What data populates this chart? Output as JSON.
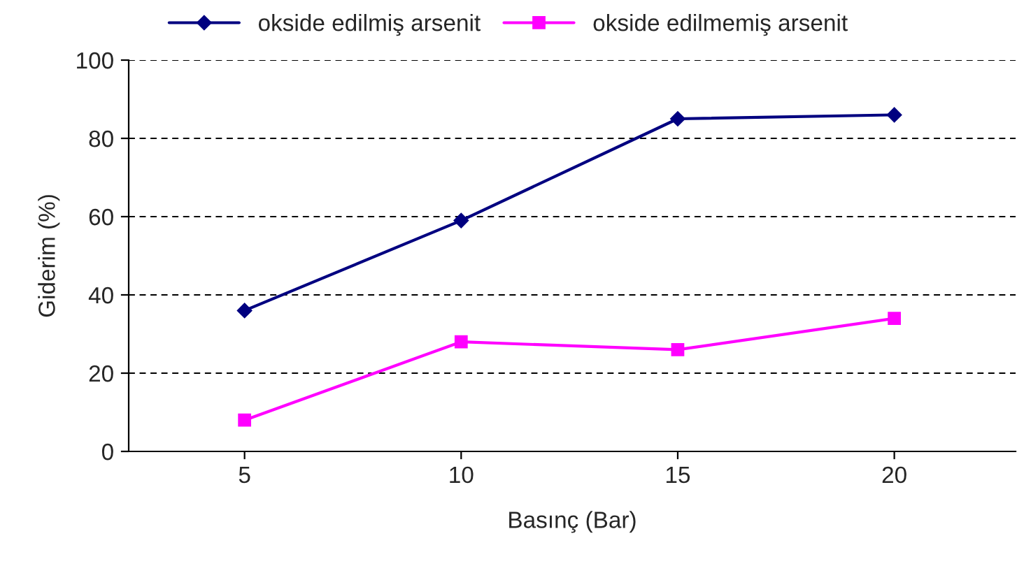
{
  "chart_data": {
    "type": "line",
    "xlabel": "Basınç (Bar)",
    "ylabel": "Giderim (%)",
    "categories": [
      "5",
      "10",
      "15",
      "20"
    ],
    "series": [
      {
        "name": "okside edilmiş arsenit",
        "color": "#000080",
        "marker": "diamond",
        "values": [
          36,
          59,
          85,
          86
        ]
      },
      {
        "name": "okside edilmemiş arsenit",
        "color": "#ff00ff",
        "marker": "square",
        "values": [
          8,
          28,
          26,
          34
        ]
      }
    ],
    "ylim": [
      0,
      100
    ],
    "yticks": [
      0,
      20,
      40,
      60,
      80,
      100
    ],
    "grid": "y",
    "legend": "top",
    "line_style": "solid"
  }
}
